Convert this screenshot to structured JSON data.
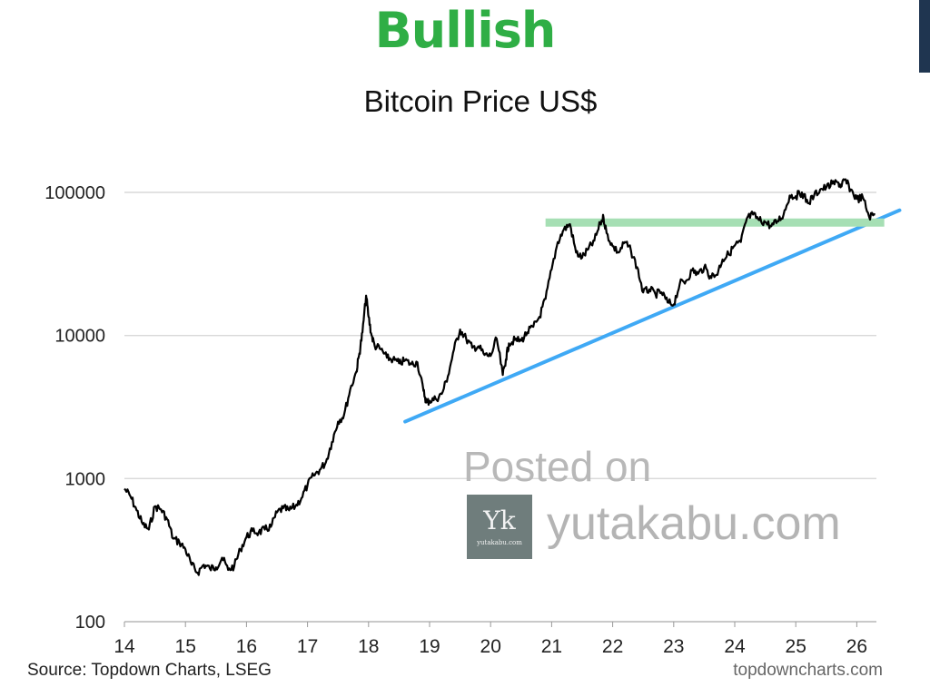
{
  "headline": "Bullish",
  "watermark": {
    "posted_on": "Posted on",
    "logo_mark": "Yk",
    "logo_caption": "yutakabu.com",
    "site": "yutakabu.com"
  },
  "footer": {
    "source": "Source: Topdown Charts, LSEG",
    "brand": "topdowncharts.com"
  },
  "colors": {
    "headline": "#2fae45",
    "price_line": "#000000",
    "trend_line": "#3fa9f5",
    "resistance_band": "#a6dfb4",
    "gridline": "#d9d9d9"
  },
  "chart_data": {
    "type": "line",
    "title": "Bitcoin Price US$",
    "xlabel": "",
    "ylabel": "",
    "y_scale": "log",
    "ylim": [
      100,
      100000
    ],
    "yticks": [
      100,
      1000,
      10000,
      100000
    ],
    "ytick_labels": [
      "100",
      "1000",
      "10000",
      "100000"
    ],
    "xlim": [
      2014.0,
      2026.4
    ],
    "xticks": [
      2014,
      2015,
      2016,
      2017,
      2018,
      2019,
      2020,
      2021,
      2022,
      2023,
      2024,
      2025,
      2026
    ],
    "xtick_labels": [
      "14",
      "15",
      "16",
      "17",
      "18",
      "19",
      "20",
      "21",
      "22",
      "23",
      "24",
      "25",
      "26"
    ],
    "grid": "horizontal",
    "series": [
      {
        "x": [
          2014.0,
          2014.1,
          2014.2,
          2014.3,
          2014.4,
          2014.5,
          2014.6,
          2014.7,
          2014.8,
          2014.9,
          2015.0,
          2015.1,
          2015.2,
          2015.3,
          2015.4,
          2015.5,
          2015.6,
          2015.7,
          2015.8,
          2015.9,
          2016.0,
          2016.1,
          2016.2,
          2016.3,
          2016.4,
          2016.5,
          2016.6,
          2016.7,
          2016.8,
          2016.9,
          2017.0,
          2017.1,
          2017.2,
          2017.3,
          2017.4,
          2017.5,
          2017.6,
          2017.7,
          2017.8,
          2017.85,
          2017.9,
          2017.96,
          2018.0,
          2018.05,
          2018.1,
          2018.2,
          2018.3,
          2018.4,
          2018.5,
          2018.6,
          2018.7,
          2018.8,
          2018.9,
          2018.95,
          2019.0,
          2019.1,
          2019.2,
          2019.3,
          2019.4,
          2019.5,
          2019.6,
          2019.7,
          2019.8,
          2019.9,
          2020.0,
          2020.1,
          2020.2,
          2020.25,
          2020.3,
          2020.4,
          2020.5,
          2020.6,
          2020.7,
          2020.8,
          2020.9,
          2021.0,
          2021.1,
          2021.2,
          2021.3,
          2021.4,
          2021.5,
          2021.6,
          2021.7,
          2021.8,
          2021.85,
          2021.9,
          2022.0,
          2022.1,
          2022.2,
          2022.3,
          2022.4,
          2022.5,
          2022.6,
          2022.7,
          2022.8,
          2022.9,
          2023.0,
          2023.1,
          2023.2,
          2023.3,
          2023.4,
          2023.5,
          2023.6,
          2023.7,
          2023.8,
          2023.9,
          2024.0,
          2024.1,
          2024.2,
          2024.3,
          2024.4,
          2024.5,
          2024.6,
          2024.7,
          2024.8,
          2024.9,
          2025.0,
          2025.1,
          2025.2,
          2025.3,
          2025.4,
          2025.5,
          2025.6,
          2025.7,
          2025.75,
          2025.8,
          2025.9,
          2026.0,
          2026.1,
          2026.2,
          2026.3
        ],
        "values": [
          850,
          750,
          600,
          480,
          440,
          640,
          610,
          520,
          380,
          360,
          320,
          250,
          220,
          250,
          235,
          240,
          280,
          230,
          245,
          320,
          390,
          430,
          420,
          440,
          460,
          580,
          620,
          600,
          640,
          730,
          900,
          1050,
          1150,
          1300,
          1800,
          2500,
          2800,
          4200,
          5600,
          7500,
          10500,
          19000,
          13500,
          10000,
          8500,
          8000,
          7000,
          6800,
          6400,
          6700,
          6300,
          6500,
          4100,
          3400,
          3500,
          3600,
          3900,
          5200,
          8000,
          11000,
          9500,
          8200,
          8400,
          7300,
          7200,
          9500,
          5300,
          6800,
          8800,
          9300,
          9200,
          10500,
          11500,
          13500,
          18000,
          29000,
          45000,
          55000,
          60000,
          38000,
          35000,
          40000,
          46000,
          61000,
          67000,
          52000,
          42000,
          38000,
          45000,
          39000,
          30000,
          20000,
          21000,
          19500,
          20000,
          17000,
          16500,
          23000,
          24000,
          28500,
          27000,
          30000,
          26000,
          26500,
          34000,
          37000,
          42500,
          45000,
          66000,
          70000,
          64000,
          62000,
          58000,
          63000,
          70000,
          95000,
          94000,
          100000,
          84000,
          95000,
          105000,
          108000,
          115000,
          117000,
          110000,
          123000,
          105000,
          90000,
          92000,
          68000,
          70000
        ]
      }
    ],
    "annotations": [
      {
        "type": "trend_line",
        "color": "trend_line",
        "x": [
          2018.6,
          2026.7
        ],
        "y": [
          2500,
          75000
        ]
      },
      {
        "type": "resistance_band",
        "color": "resistance_band",
        "x": [
          2020.9,
          2026.45
        ],
        "y": [
          62000,
          62000
        ]
      }
    ]
  }
}
